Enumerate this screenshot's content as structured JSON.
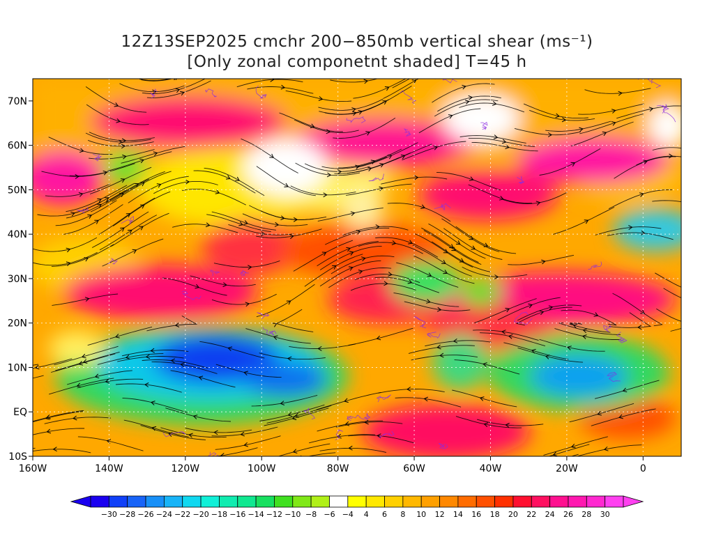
{
  "title": {
    "line1": "12Z13SEP2025 cmchr 200−850mb vertical shear (ms⁻¹)",
    "line2": "[Only zonal componetnt shaded] T=45 h"
  },
  "map": {
    "lat_labels": [
      "70N",
      "60N",
      "50N",
      "40N",
      "30N",
      "20N",
      "10N",
      "EQ",
      "10S"
    ],
    "lon_labels": [
      "160W",
      "140W",
      "120W",
      "100W",
      "80W",
      "60W",
      "40W",
      "20W",
      "0"
    ],
    "lon_range": [
      -160,
      10
    ],
    "lat_range": [
      -10,
      75
    ]
  },
  "colorbar": {
    "labels": [
      "−30",
      "−28",
      "−26",
      "−24",
      "−22",
      "−20",
      "−18",
      "−16",
      "−14",
      "−12",
      "−10",
      "−8",
      "−6",
      "−4",
      "4",
      "6",
      "8",
      "10",
      "12",
      "14",
      "16",
      "18",
      "20",
      "22",
      "24",
      "26",
      "28",
      "30"
    ],
    "colors": [
      "#1a00f0",
      "#1040f8",
      "#1864f8",
      "#1890f8",
      "#18b4f8",
      "#10d8f0",
      "#10f0d8",
      "#10ecb0",
      "#10e890",
      "#18e060",
      "#40e020",
      "#80e818",
      "#b0f018",
      "#ffffff",
      "#ffff00",
      "#ffe800",
      "#ffd000",
      "#ffb800",
      "#ffa000",
      "#ff8800",
      "#ff6c00",
      "#ff5000",
      "#ff3000",
      "#ff1030",
      "#ff1060",
      "#ff1090",
      "#ff18b0",
      "#ff28d0",
      "#ff40f0"
    ]
  },
  "colors": {
    "streamline": "#000000",
    "contour": "#8a2be2",
    "gridline": "#ffffff"
  }
}
